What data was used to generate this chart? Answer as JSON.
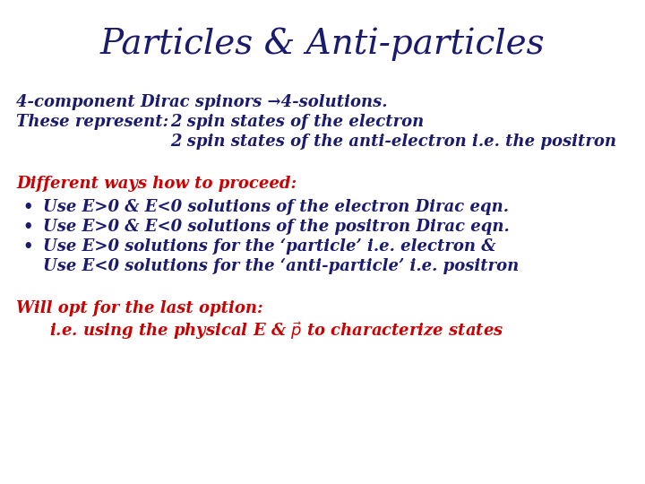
{
  "title": "Particles & Anti-particles",
  "title_color": "#1a1a6e",
  "title_fontsize": 28,
  "background_color": "#ffffff",
  "dark_blue": "#1a1a6e",
  "red": "#cc0000",
  "line1": "4-component Dirac spinors →4-solutions.",
  "line2a": "These represent:",
  "line2b": "2 spin states of the electron",
  "line3": "2 spin states of the anti-electron i.e. the positron",
  "red_header": "Different ways how to proceed:",
  "bullet1": "Use E>0 & E<0 solutions of the electron Dirac eqn.",
  "bullet2": "Use E>0 & E<0 solutions of the positron Dirac eqn.",
  "bullet3a": "Use E>0 solutions for the ‘particle’ i.e. electron &",
  "bullet3b": "Use E<0 solutions for the ‘anti-particle’ i.e. positron",
  "will_opt": "Will opt for the last option:",
  "last_line_prefix": "i.e. using the physical E & ",
  "last_line_suffix": " to characterize states",
  "body_fontsize": 13,
  "bullet_fontsize": 13
}
